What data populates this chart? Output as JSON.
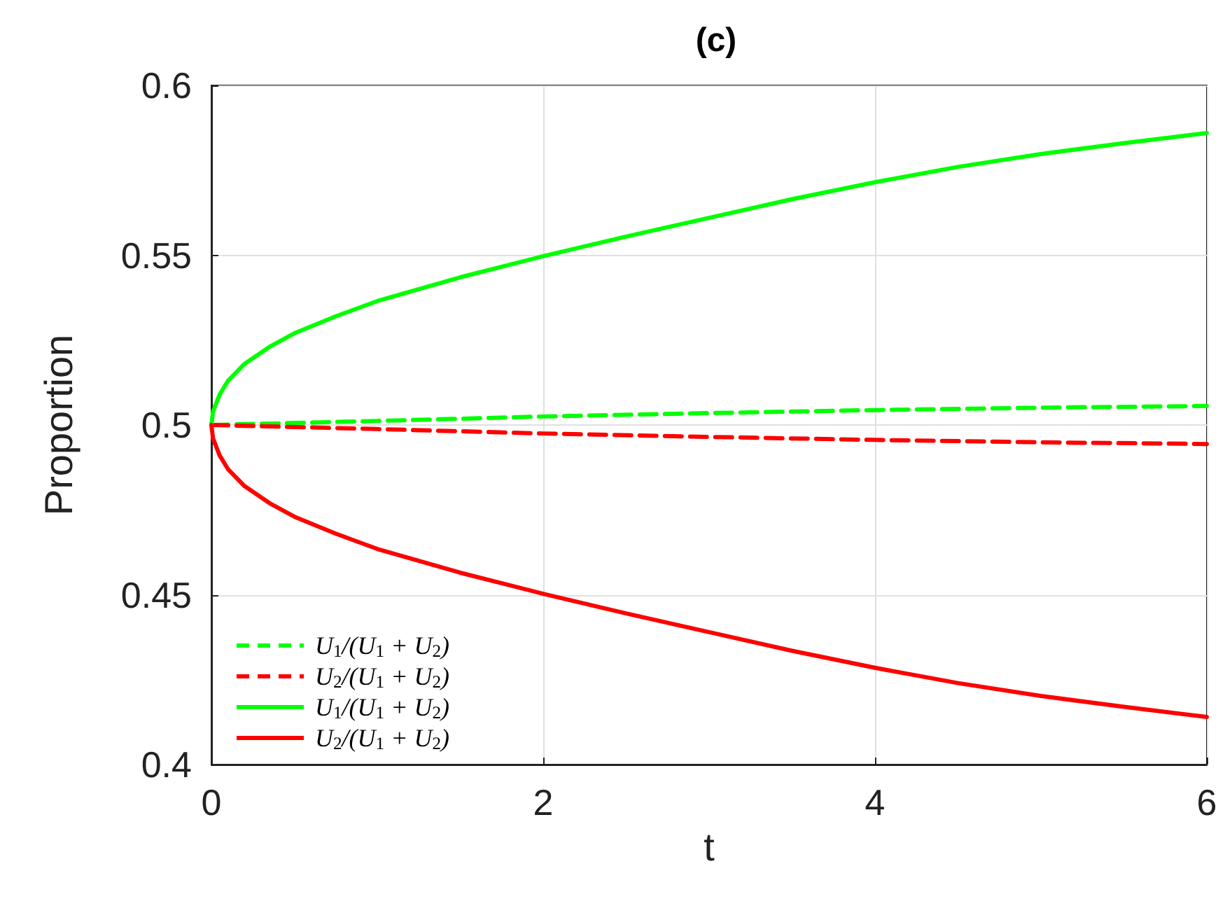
{
  "chart_data": {
    "type": "line",
    "title": "(c)",
    "xlabel": "t",
    "ylabel": "Proportion",
    "xlim": [
      0,
      6
    ],
    "ylim": [
      0.4,
      0.6
    ],
    "xticks": [
      0,
      2,
      4,
      6
    ],
    "yticks": [
      0.4,
      0.45,
      0.5,
      0.55,
      0.6
    ],
    "grid": true,
    "legend": "bottom left",
    "series": [
      {
        "name": "U$_{1}$/(U$_{1}$ + U$_{2}$)",
        "color": "#00ff00",
        "line_style": "dashed",
        "x": [
          0,
          1,
          2,
          3,
          4,
          5,
          6
        ],
        "values": [
          0.5,
          0.5012,
          0.5025,
          0.5035,
          0.5044,
          0.5051,
          0.5056
        ]
      },
      {
        "name": "U$_{2}$/(U$_{1}$ + U$_{2}$)",
        "color": "#ff0000",
        "line_style": "dashed",
        "x": [
          0,
          1,
          2,
          3,
          4,
          5,
          6
        ],
        "values": [
          0.5,
          0.4988,
          0.4975,
          0.4965,
          0.4956,
          0.4949,
          0.4944
        ]
      },
      {
        "name": "U$_{1}$/(U$_{1}$ + U$_{2}$)",
        "color": "#00ff00",
        "line_style": "solid",
        "x": [
          0,
          0.01,
          0.05,
          0.1,
          0.2,
          0.35,
          0.5,
          0.75,
          1,
          1.5,
          2,
          2.5,
          3,
          3.5,
          4,
          4.5,
          5,
          5.5,
          6
        ],
        "values": [
          0.5,
          0.504,
          0.509,
          0.513,
          0.518,
          0.523,
          0.527,
          0.532,
          0.5365,
          0.5435,
          0.5497,
          0.5555,
          0.561,
          0.5665,
          0.5715,
          0.576,
          0.5798,
          0.583,
          0.586
        ]
      },
      {
        "name": "U$_{2}$/(U$_{1}$ + U$_{2}$)",
        "color": "#ff0000",
        "line_style": "solid",
        "x": [
          0,
          0.01,
          0.05,
          0.1,
          0.2,
          0.35,
          0.5,
          0.75,
          1,
          1.5,
          2,
          2.5,
          3,
          3.5,
          4,
          4.5,
          5,
          5.5,
          6
        ],
        "values": [
          0.5,
          0.496,
          0.491,
          0.487,
          0.482,
          0.477,
          0.473,
          0.468,
          0.4635,
          0.4565,
          0.4503,
          0.4445,
          0.439,
          0.4335,
          0.4285,
          0.424,
          0.4202,
          0.417,
          0.414
        ]
      }
    ]
  }
}
